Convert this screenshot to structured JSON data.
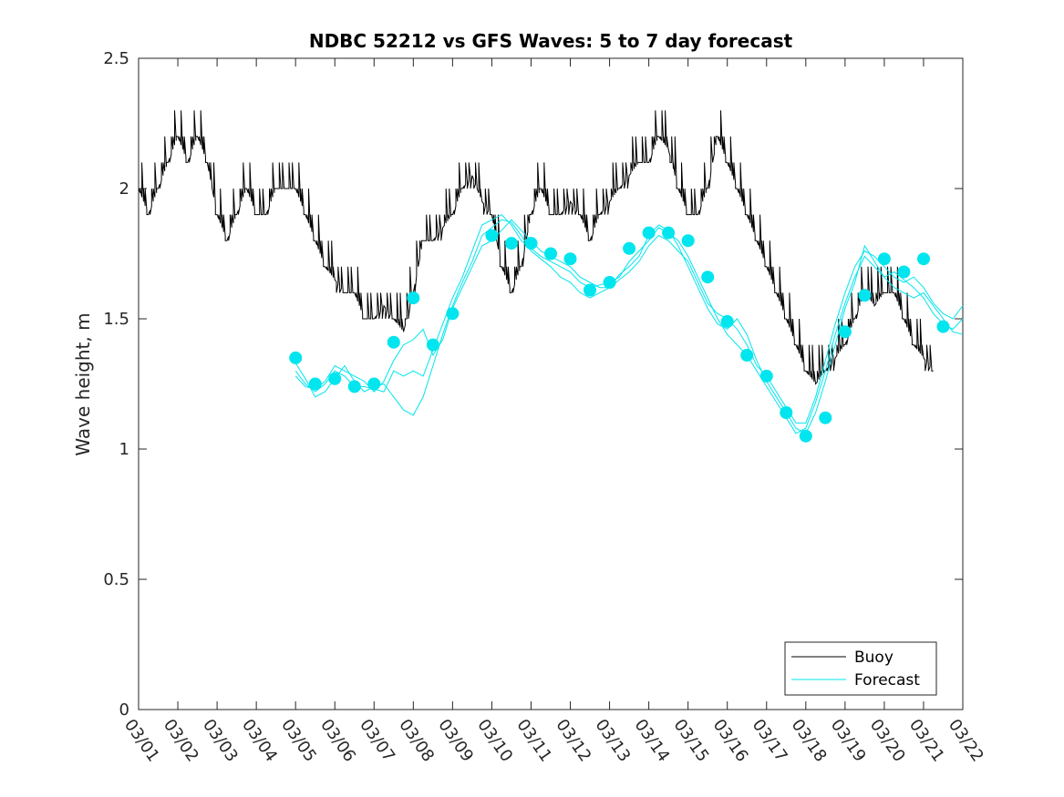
{
  "chart_data": {
    "type": "line",
    "title": "NDBC 52212 vs GFS Waves: 5 to 7 day forecast",
    "xlabel": "",
    "ylabel": "Wave height, m",
    "ylim": [
      0,
      2.5
    ],
    "xlim_days": [
      0,
      21
    ],
    "yticks": [
      0,
      0.5,
      1,
      1.5,
      2,
      2.5
    ],
    "ytick_labels": [
      "0",
      "0.5",
      "1",
      "1.5",
      "2",
      "2.5"
    ],
    "xtick_labels": [
      "03/01",
      "03/02",
      "03/03",
      "03/04",
      "03/05",
      "03/06",
      "03/07",
      "03/08",
      "03/09",
      "03/10",
      "03/11",
      "03/12",
      "03/13",
      "03/14",
      "03/15",
      "03/16",
      "03/17",
      "03/18",
      "03/19",
      "03/20",
      "03/21",
      "03/22"
    ],
    "legend": {
      "position": "bottom-right",
      "entries": [
        "Buoy",
        "Forecast"
      ]
    },
    "colors": {
      "buoy": "#000000",
      "forecast": "#00e5ee"
    },
    "series": [
      {
        "name": "Buoy",
        "x_days": [
          0.0,
          0.25,
          0.5,
          0.75,
          1.0,
          1.25,
          1.5,
          1.75,
          2.0,
          2.25,
          2.5,
          2.75,
          3.0,
          3.25,
          3.5,
          3.75,
          4.0,
          4.25,
          4.5,
          4.75,
          5.0,
          5.25,
          5.5,
          5.75,
          6.0,
          6.25,
          6.5,
          6.75,
          7.0,
          7.25,
          7.5,
          7.75,
          8.0,
          8.25,
          8.5,
          8.75,
          9.0,
          9.25,
          9.5,
          9.75,
          10.0,
          10.25,
          10.5,
          10.75,
          11.0,
          11.25,
          11.5,
          11.75,
          12.0,
          12.25,
          12.5,
          12.75,
          13.0,
          13.25,
          13.5,
          13.75,
          14.0,
          14.25,
          14.5,
          14.75,
          15.0,
          15.25,
          15.5,
          15.75,
          16.0,
          16.25,
          16.5,
          16.75,
          17.0,
          17.25,
          17.5,
          17.75,
          18.0,
          18.25,
          18.5,
          18.75,
          19.0,
          19.25,
          19.5,
          19.75,
          20.0,
          20.25
        ],
        "values": [
          2.0,
          1.9,
          2.0,
          2.1,
          2.2,
          2.1,
          2.2,
          2.1,
          1.9,
          1.8,
          1.9,
          2.0,
          1.9,
          1.9,
          2.0,
          2.0,
          2.0,
          1.9,
          1.8,
          1.7,
          1.65,
          1.6,
          1.6,
          1.5,
          1.5,
          1.55,
          1.5,
          1.45,
          1.6,
          1.8,
          1.8,
          1.85,
          1.9,
          2.0,
          2.05,
          1.95,
          1.9,
          1.7,
          1.6,
          1.7,
          1.9,
          2.0,
          1.9,
          1.9,
          1.95,
          1.9,
          1.8,
          1.9,
          1.95,
          2.0,
          2.05,
          2.1,
          2.1,
          2.2,
          2.15,
          2.0,
          1.9,
          1.9,
          2.0,
          2.2,
          2.1,
          2.0,
          1.9,
          1.8,
          1.7,
          1.6,
          1.5,
          1.4,
          1.3,
          1.25,
          1.3,
          1.35,
          1.4,
          1.5,
          1.6,
          1.55,
          1.6,
          1.6,
          1.5,
          1.4,
          1.35,
          1.3
        ]
      },
      {
        "name": "Forecast",
        "points": [
          {
            "x": 4.0,
            "y": 1.35
          },
          {
            "x": 4.5,
            "y": 1.25
          },
          {
            "x": 5.0,
            "y": 1.27
          },
          {
            "x": 5.5,
            "y": 1.24
          },
          {
            "x": 6.0,
            "y": 1.25
          },
          {
            "x": 6.5,
            "y": 1.41
          },
          {
            "x": 7.0,
            "y": 1.58
          },
          {
            "x": 7.5,
            "y": 1.4
          },
          {
            "x": 8.0,
            "y": 1.52
          },
          {
            "x": 9.0,
            "y": 1.82
          },
          {
            "x": 9.5,
            "y": 1.79
          },
          {
            "x": 10.0,
            "y": 1.79
          },
          {
            "x": 10.5,
            "y": 1.75
          },
          {
            "x": 11.0,
            "y": 1.73
          },
          {
            "x": 11.5,
            "y": 1.61
          },
          {
            "x": 12.0,
            "y": 1.64
          },
          {
            "x": 12.5,
            "y": 1.77
          },
          {
            "x": 13.0,
            "y": 1.83
          },
          {
            "x": 13.5,
            "y": 1.83
          },
          {
            "x": 14.0,
            "y": 1.8
          },
          {
            "x": 14.5,
            "y": 1.66
          },
          {
            "x": 15.0,
            "y": 1.49
          },
          {
            "x": 15.5,
            "y": 1.36
          },
          {
            "x": 16.0,
            "y": 1.28
          },
          {
            "x": 16.5,
            "y": 1.14
          },
          {
            "x": 17.0,
            "y": 1.05
          },
          {
            "x": 17.5,
            "y": 1.12
          },
          {
            "x": 18.0,
            "y": 1.45
          },
          {
            "x": 18.5,
            "y": 1.59
          },
          {
            "x": 19.0,
            "y": 1.73
          },
          {
            "x": 19.5,
            "y": 1.68
          },
          {
            "x": 20.0,
            "y": 1.73
          },
          {
            "x": 20.5,
            "y": 1.47
          }
        ],
        "trace_x_days": [
          4.0,
          4.25,
          4.5,
          4.75,
          5.0,
          5.25,
          5.5,
          5.75,
          6.0,
          6.25,
          6.5,
          6.75,
          7.0,
          7.25,
          7.5,
          7.75,
          8.0,
          8.25,
          8.5,
          8.75,
          9.0,
          9.25,
          9.5,
          9.75,
          10.0,
          10.25,
          10.5,
          10.75,
          11.0,
          11.25,
          11.5,
          11.75,
          12.0,
          12.25,
          12.5,
          12.75,
          13.0,
          13.25,
          13.5,
          13.75,
          14.0,
          14.25,
          14.5,
          14.75,
          15.0,
          15.25,
          15.5,
          15.75,
          16.0,
          16.25,
          16.5,
          16.75,
          17.0,
          17.25,
          17.5,
          17.75,
          18.0,
          18.25,
          18.5,
          18.75,
          19.0,
          19.25,
          19.5,
          19.75,
          20.0,
          20.25,
          20.5,
          20.75,
          21.0
        ],
        "traces": [
          [
            1.3,
            1.25,
            1.22,
            1.25,
            1.3,
            1.28,
            1.24,
            1.24,
            1.23,
            1.22,
            1.3,
            1.28,
            1.3,
            1.28,
            1.38,
            1.48,
            1.58,
            1.66,
            1.76,
            1.86,
            1.88,
            1.9,
            1.86,
            1.8,
            1.77,
            1.74,
            1.72,
            1.7,
            1.68,
            1.64,
            1.62,
            1.63,
            1.64,
            1.66,
            1.72,
            1.76,
            1.8,
            1.85,
            1.83,
            1.8,
            1.74,
            1.66,
            1.58,
            1.5,
            1.44,
            1.4,
            1.36,
            1.3,
            1.24,
            1.18,
            1.12,
            1.06,
            1.08,
            1.18,
            1.3,
            1.44,
            1.56,
            1.66,
            1.74,
            1.7,
            1.66,
            1.68,
            1.65,
            1.62,
            1.58,
            1.52,
            1.48,
            1.46,
            1.5
          ],
          [
            1.33,
            1.27,
            1.2,
            1.22,
            1.27,
            1.32,
            1.26,
            1.22,
            1.24,
            1.25,
            1.2,
            1.15,
            1.13,
            1.2,
            1.32,
            1.44,
            1.55,
            1.64,
            1.72,
            1.82,
            1.85,
            1.88,
            1.87,
            1.82,
            1.76,
            1.73,
            1.7,
            1.66,
            1.64,
            1.6,
            1.58,
            1.6,
            1.62,
            1.67,
            1.7,
            1.74,
            1.82,
            1.86,
            1.84,
            1.78,
            1.7,
            1.62,
            1.54,
            1.48,
            1.46,
            1.5,
            1.44,
            1.34,
            1.26,
            1.2,
            1.14,
            1.08,
            1.06,
            1.14,
            1.26,
            1.4,
            1.54,
            1.64,
            1.78,
            1.72,
            1.66,
            1.62,
            1.6,
            1.58,
            1.6,
            1.55,
            1.5,
            1.45,
            1.44
          ],
          [
            1.28,
            1.24,
            1.23,
            1.26,
            1.32,
            1.3,
            1.28,
            1.26,
            1.22,
            1.26,
            1.34,
            1.4,
            1.42,
            1.46,
            1.36,
            1.42,
            1.54,
            1.62,
            1.7,
            1.78,
            1.8,
            1.84,
            1.88,
            1.84,
            1.8,
            1.76,
            1.74,
            1.72,
            1.7,
            1.66,
            1.64,
            1.62,
            1.62,
            1.65,
            1.68,
            1.72,
            1.78,
            1.82,
            1.8,
            1.76,
            1.72,
            1.64,
            1.56,
            1.52,
            1.5,
            1.46,
            1.4,
            1.32,
            1.28,
            1.22,
            1.16,
            1.1,
            1.1,
            1.2,
            1.34,
            1.48,
            1.6,
            1.7,
            1.76,
            1.74,
            1.7,
            1.66,
            1.64,
            1.66,
            1.62,
            1.56,
            1.52,
            1.5,
            1.55
          ]
        ]
      }
    ]
  }
}
